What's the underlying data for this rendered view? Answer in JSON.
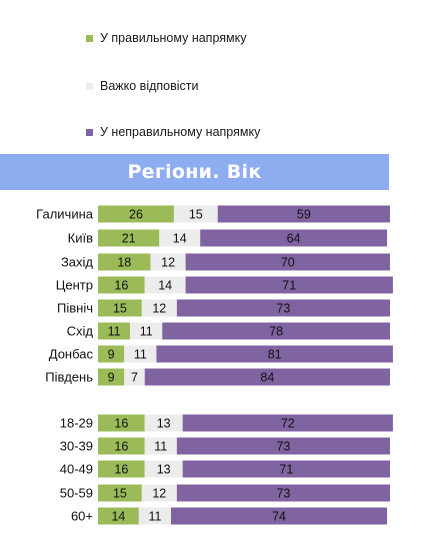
{
  "chart_data": {
    "type": "bar",
    "stacked": true,
    "orientation": "horizontal",
    "title": "Регіони. Вік",
    "legend_placement": "top",
    "categories": [
      "Галичина",
      "Київ",
      "Захід",
      "Центр",
      "Північ",
      "Схід",
      "Донбас",
      "Південь",
      "18-29",
      "30-39",
      "40-49",
      "50-59",
      "60+"
    ],
    "series": [
      {
        "name": "У правильному напрямку",
        "color": "#9bbb59",
        "values": [
          26,
          21,
          18,
          16,
          15,
          11,
          9,
          9,
          16,
          16,
          16,
          15,
          14
        ]
      },
      {
        "name": "Важко відповісти",
        "color": "#ececec",
        "values": [
          15,
          14,
          12,
          14,
          12,
          11,
          11,
          7,
          13,
          11,
          13,
          12,
          11
        ]
      },
      {
        "name": "У неправильному напрямку",
        "color": "#8064a2",
        "values": [
          59,
          64,
          70,
          71,
          73,
          78,
          81,
          84,
          72,
          73,
          71,
          73,
          74
        ]
      }
    ],
    "xlim": [
      0,
      100
    ],
    "grid": false
  }
}
